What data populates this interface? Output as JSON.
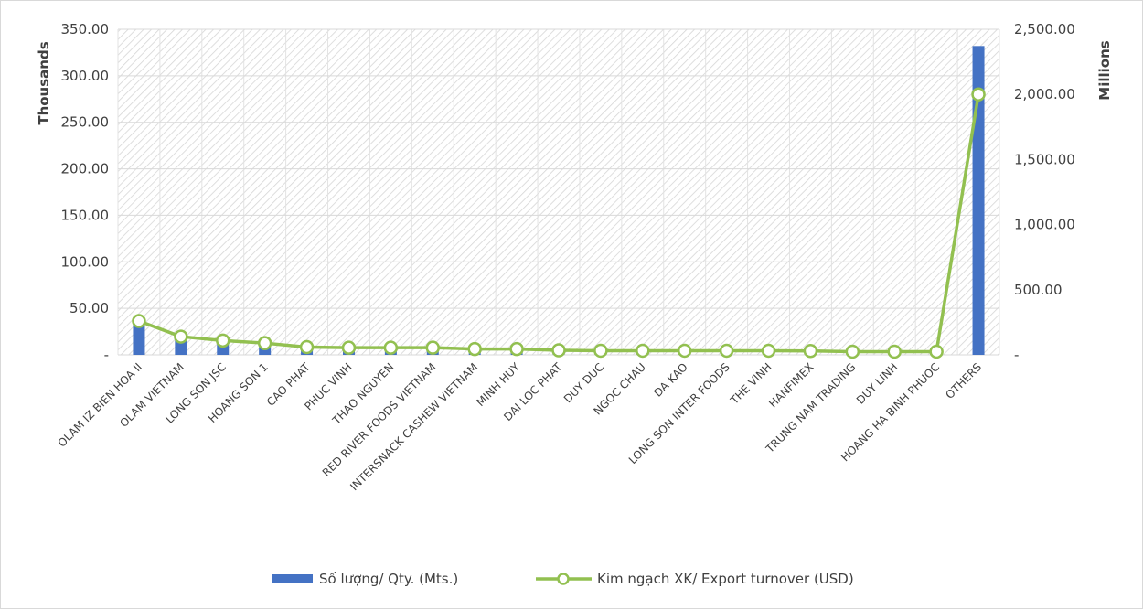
{
  "chart_data": {
    "type": "bar",
    "categories": [
      "OLAM IZ BIEN HOA II",
      "OLAM VIETNAM",
      "LONG SON JSC",
      "HOANG SON 1",
      "CAO PHAT",
      "PHUC VINH",
      "THAO NGUYEN",
      "RED RIVER FOODS VIETNAM",
      "INTERSNACK CASHEW VIETNAM",
      "MINH HUY",
      "DAI LOC PHAT",
      "DUY DUC",
      "NGOC CHAU",
      "DA KAO",
      "LONG SON INTER FOODS",
      "THE VINH",
      "HANFIMEX",
      "TRUNG NAM TRADING",
      "DUY LINH",
      "HOANG HA BINH PHUOC",
      "OTHERS"
    ],
    "series": [
      {
        "name": "Số lượng/ Qty. (Mts.)",
        "type": "bar",
        "axis": "left",
        "color": "#4472c4",
        "values": [
          34,
          20,
          16,
          12,
          8,
          7,
          7,
          7,
          6,
          6,
          5,
          4,
          4,
          4,
          4,
          4,
          4,
          3,
          3,
          3,
          332
        ]
      },
      {
        "name": "Kim ngạch XK/ Export turnover (USD)",
        "type": "line",
        "axis": "right",
        "color": "#92c050",
        "values": [
          260,
          140,
          110,
          90,
          60,
          55,
          55,
          55,
          45,
          45,
          35,
          32,
          32,
          32,
          32,
          32,
          30,
          25,
          25,
          25,
          2000
        ]
      }
    ],
    "y_left": {
      "label": "Thousands",
      "range": [
        0,
        350
      ],
      "ticks": [
        0,
        50,
        100,
        150,
        200,
        250,
        300,
        350
      ],
      "tick_labels": [
        "-",
        "50.00",
        "100.00",
        "150.00",
        "200.00",
        "250.00",
        "300.00",
        "350.00"
      ]
    },
    "y_right": {
      "label": "Millions",
      "range": [
        0,
        2500
      ],
      "ticks": [
        0,
        500,
        1000,
        1500,
        2000,
        2500
      ],
      "tick_labels": [
        "-",
        "500.00",
        "1,000.00",
        "1,500.00",
        "2,000.00",
        "2,500.00"
      ]
    },
    "grid": true,
    "plot_pattern": "diagonal-hatch",
    "legend_position": "bottom"
  }
}
